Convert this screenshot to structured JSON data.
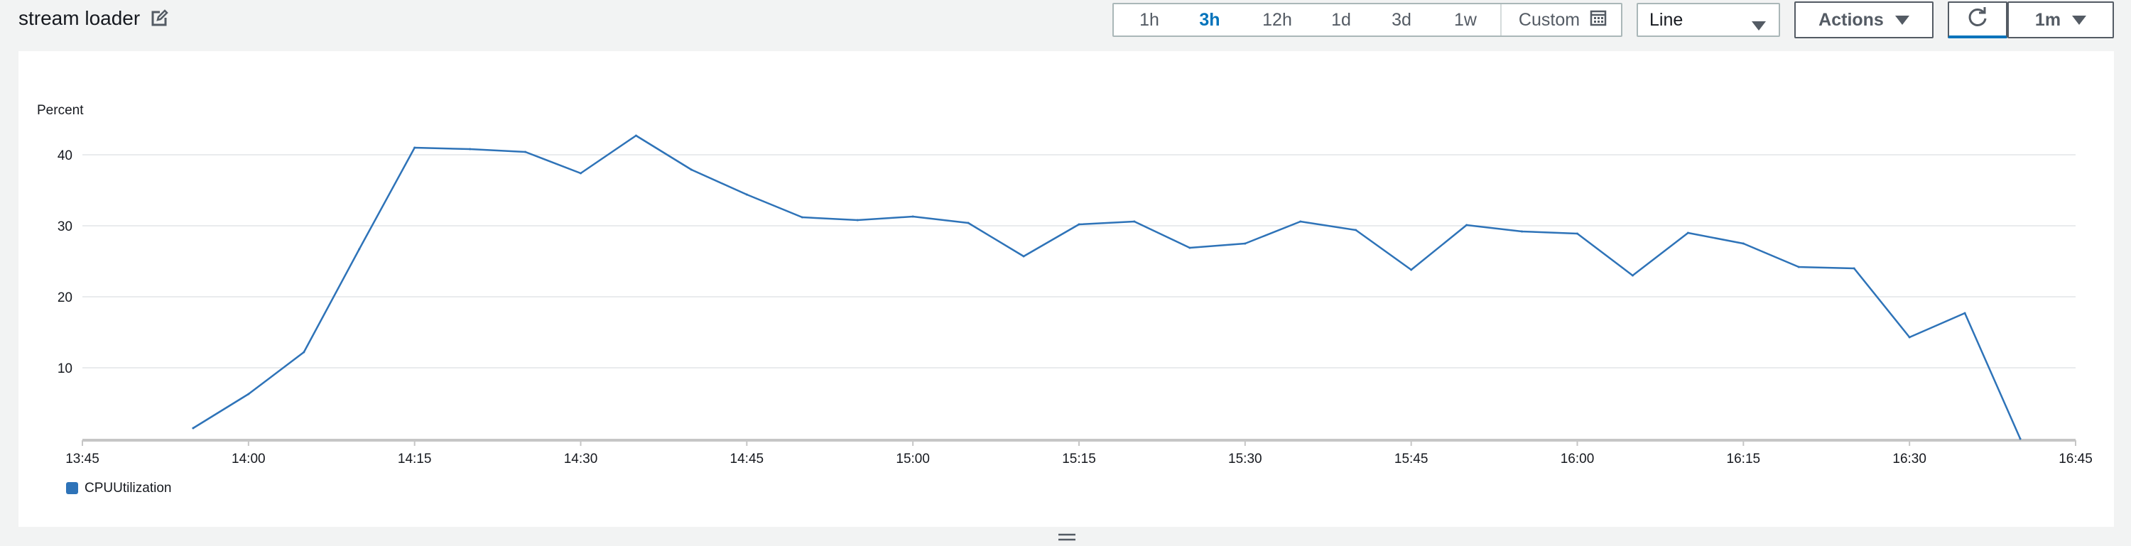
{
  "header": {
    "title": "stream loader"
  },
  "time_range": {
    "options": [
      "1h",
      "3h",
      "12h",
      "1d",
      "3d",
      "1w"
    ],
    "selected": "3h",
    "custom_label": "Custom"
  },
  "chart_type_select": {
    "value": "Line"
  },
  "actions_button": {
    "label": "Actions"
  },
  "refresh_interval": {
    "value": "1m"
  },
  "colors": {
    "series": "#2e73b8",
    "grid": "#e9ebed",
    "axis": "#c6c6c6",
    "accent": "#0073bb"
  },
  "icons": {
    "edit": "edit-icon",
    "calendar": "calendar-icon",
    "caret": "caret-down-icon",
    "refresh": "refresh-icon",
    "resize": "resize-handle-icon"
  },
  "chart_data": {
    "type": "line",
    "ylabel": "Percent",
    "xlabel": "",
    "title": "",
    "ylim": [
      0,
      45
    ],
    "yticks": [
      10,
      20,
      30,
      40
    ],
    "xlim": [
      "13:45",
      "16:45"
    ],
    "xticks": [
      "13:45",
      "14:00",
      "14:15",
      "14:30",
      "14:45",
      "15:00",
      "15:15",
      "15:30",
      "15:45",
      "16:00",
      "16:15",
      "16:30",
      "16:45"
    ],
    "grid": true,
    "legend_position": "bottom-left",
    "series": [
      {
        "name": "CPUUtilization",
        "x": [
          "13:55",
          "14:00",
          "14:05",
          "14:10",
          "14:15",
          "14:20",
          "14:25",
          "14:30",
          "14:35",
          "14:40",
          "14:45",
          "14:50",
          "14:55",
          "15:00",
          "15:05",
          "15:10",
          "15:15",
          "15:20",
          "15:25",
          "15:30",
          "15:35",
          "15:40",
          "15:45",
          "15:50",
          "15:55",
          "16:00",
          "16:05",
          "16:10",
          "16:15",
          "16:20",
          "16:25",
          "16:30",
          "16:35",
          "16:40"
        ],
        "values": [
          1.5,
          6.3,
          12.2,
          26.7,
          41.0,
          40.8,
          40.4,
          37.4,
          42.7,
          37.9,
          34.4,
          31.2,
          30.8,
          31.3,
          30.4,
          25.7,
          30.2,
          30.6,
          26.9,
          27.5,
          30.6,
          29.4,
          23.8,
          30.1,
          29.2,
          28.9,
          23.0,
          29.0,
          27.5,
          24.2,
          24.0,
          14.3,
          17.7,
          0.0
        ]
      }
    ]
  }
}
